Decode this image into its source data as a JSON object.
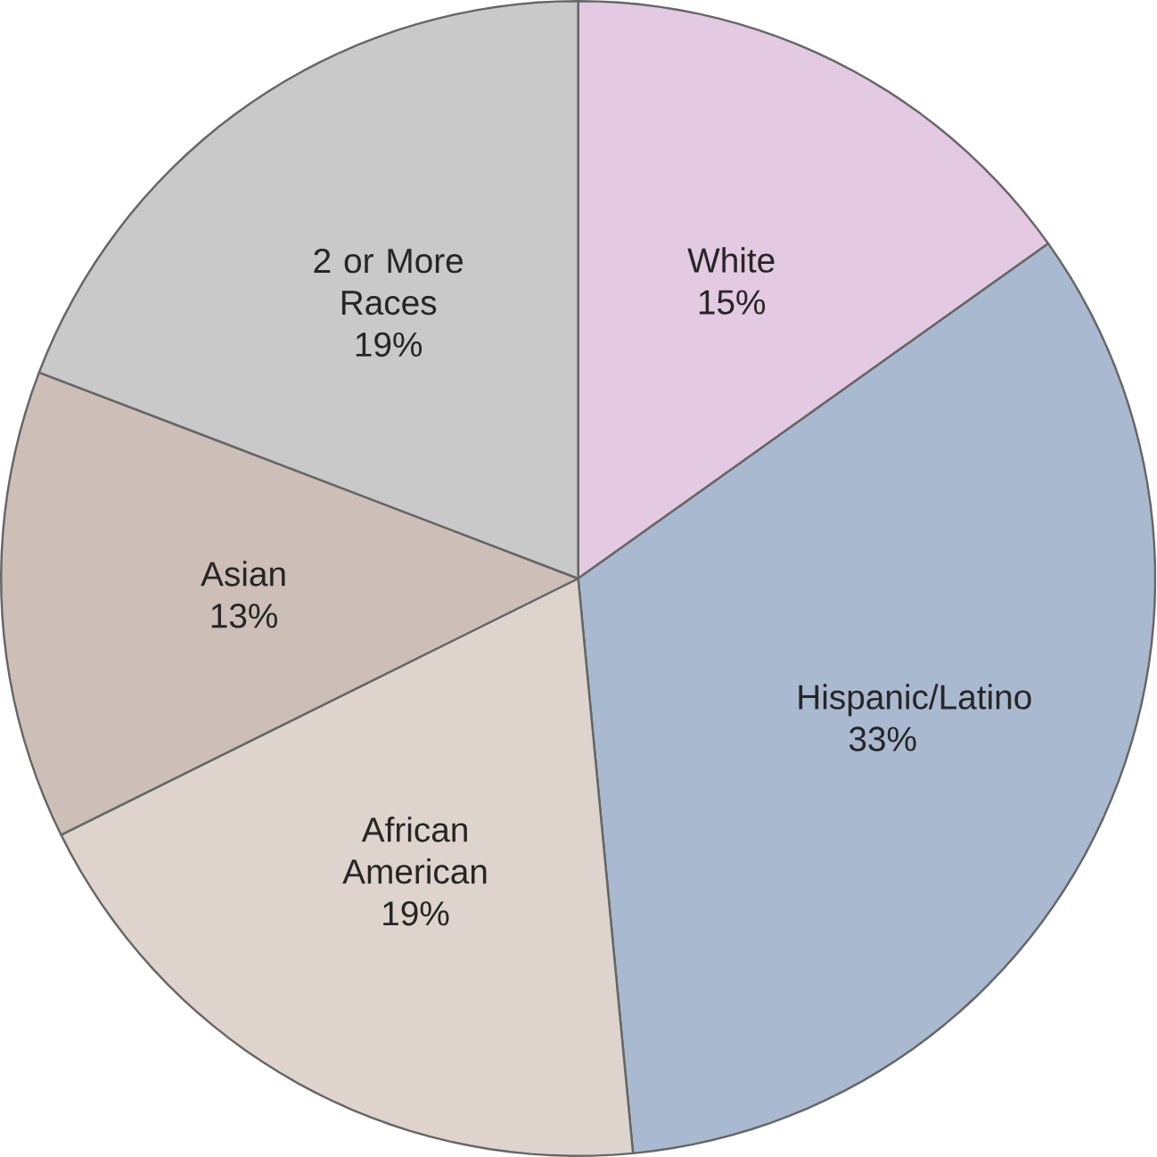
{
  "chart_data": {
    "type": "pie",
    "categories": [
      "White",
      "Hispanic/Latino",
      "African American",
      "Asian",
      "2 or More Races"
    ],
    "values": [
      15,
      33,
      19,
      13,
      19
    ],
    "value_labels": [
      "15%",
      "33%",
      "19%",
      "13%",
      "19%"
    ],
    "colors": [
      "#e3c9e1",
      "#a9b9cf",
      "#ded4cd",
      "#cdbfb8",
      "#c9c9c9"
    ]
  }
}
